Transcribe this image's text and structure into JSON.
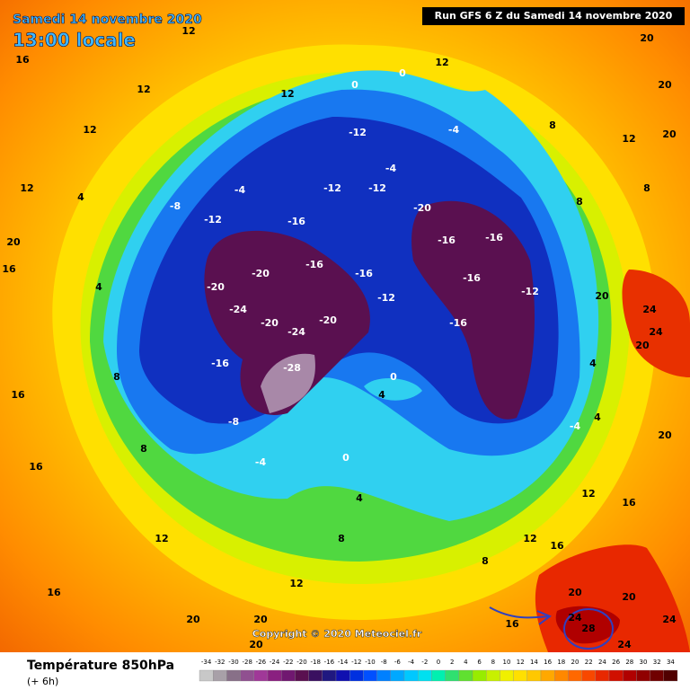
{
  "header": {
    "date": "Samedi 14 novembre 2020",
    "time": "13:00 locale",
    "run": "Run GFS 6 Z du Samedi 14 novembre 2020"
  },
  "copyright": "Copyright © 2020 Meteociel.fr",
  "legend": {
    "title": "Température 850hPa",
    "step": "(+ 6h)"
  },
  "colorbar": {
    "ticks": [
      -34,
      -32,
      -30,
      -28,
      -26,
      -24,
      -22,
      -20,
      -18,
      -16,
      -14,
      -12,
      -10,
      -8,
      -6,
      -4,
      -2,
      0,
      2,
      4,
      6,
      8,
      10,
      12,
      14,
      16,
      18,
      20,
      22,
      24,
      26,
      28,
      30,
      32,
      34
    ],
    "colors": [
      "#c8c8c8",
      "#a8a0a8",
      "#887088",
      "#905090",
      "#a03898",
      "#8a2080",
      "#701870",
      "#5a1050",
      "#3a1060",
      "#201880",
      "#1010b0",
      "#0030e0",
      "#0050ff",
      "#0080ff",
      "#00a8ff",
      "#00c8ff",
      "#00e0f0",
      "#00f0b0",
      "#30e070",
      "#60e030",
      "#98ec00",
      "#c8f000",
      "#f0f000",
      "#ffe000",
      "#ffc800",
      "#ffa800",
      "#ff8800",
      "#ff6800",
      "#f84800",
      "#e82800",
      "#d01000",
      "#b00000",
      "#900000",
      "#700000",
      "#500000"
    ]
  },
  "contour_labels": [
    16,
    12,
    12,
    12,
    12,
    0,
    0,
    -12,
    12,
    -4,
    -12,
    -12,
    -20,
    -16,
    -12,
    -4,
    -8,
    -20,
    -20,
    -24,
    -20,
    -24,
    -20,
    -16,
    -16,
    -12,
    -16,
    -16,
    -16,
    -12,
    -16,
    -28,
    -16,
    -8,
    0,
    4,
    0,
    -4,
    -4,
    8,
    8,
    12,
    8,
    20,
    24,
    24,
    20,
    4,
    -4,
    4,
    12,
    16,
    20,
    28,
    24,
    20,
    24,
    16,
    8,
    12,
    4,
    8,
    12,
    12,
    16,
    16,
    16,
    16,
    20,
    12,
    4,
    4,
    8,
    8,
    20,
    20,
    16,
    20,
    20,
    20,
    24,
    20,
    20
  ]
}
